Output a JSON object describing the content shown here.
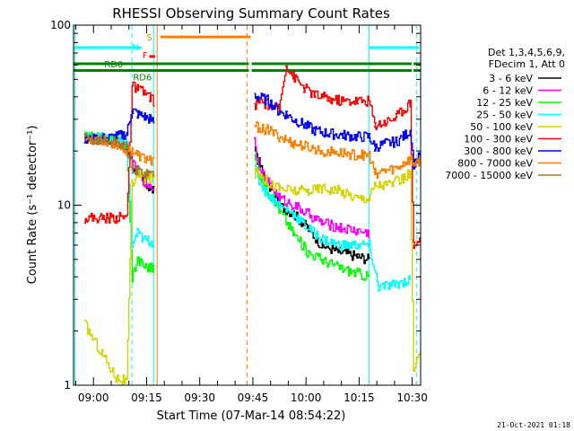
{
  "chart_data": {
    "type": "line",
    "title": "RHESSI Observing Summary Count Rates",
    "xlabel": "Start Time (07-Mar-14 08:54:22)",
    "ylabel": "Count Rate (s⁻¹ detector⁻¹)",
    "y_scale": "log",
    "ylim": [
      1,
      100
    ],
    "xlim_minutes": [
      0,
      98
    ],
    "x_ticks": [
      {
        "label": "09:00",
        "minute": 5.63
      },
      {
        "label": "09:15",
        "minute": 20.63
      },
      {
        "label": "09:30",
        "minute": 35.63
      },
      {
        "label": "09:45",
        "minute": 50.63
      },
      {
        "label": "10:00",
        "minute": 65.63
      },
      {
        "label": "10:15",
        "minute": 80.63
      },
      {
        "label": "10:30",
        "minute": 95.63
      }
    ],
    "y_ticks": [
      {
        "label": "1",
        "value": 1
      },
      {
        "label": "10",
        "value": 10
      },
      {
        "label": "100",
        "value": 100
      }
    ],
    "timestamp": "21-Oct-2021 01:18",
    "legend": {
      "placement": "right",
      "header": [
        "Det 1,3,4,5,6,9,",
        "FDecim 1, Att 0"
      ],
      "entries": [
        {
          "label": "3 - 6 keV",
          "color": "#000000"
        },
        {
          "label": "6 - 12 keV",
          "color": "#ff00ff"
        },
        {
          "label": "12 - 25 keV",
          "color": "#00ff00"
        },
        {
          "label": "25 - 50 keV",
          "color": "#00ffff"
        },
        {
          "label": "50 - 100 keV",
          "color": "#d4d400"
        },
        {
          "label": "100 - 300 keV",
          "color": "#ff0000"
        },
        {
          "label": "300 - 800 keV",
          "color": "#0000ff"
        },
        {
          "label": "800 - 7000 keV",
          "color": "#ff8000"
        },
        {
          "label": "7000 - 15000 keV",
          "color": "#a07830"
        }
      ]
    },
    "flags": [
      {
        "label": "N",
        "color": "#00ffff",
        "segments": [
          [
            0,
            19.2
          ],
          [
            83.5,
            97.5
          ]
        ],
        "level": 75
      },
      {
        "label": "S",
        "color": "#ff8000",
        "segments": [
          [
            24.5,
            50.0
          ]
        ],
        "level": 86
      },
      {
        "label": "F",
        "color": "#ff0000",
        "segments": [
          [
            21.4,
            23.0
          ]
        ],
        "level": 67
      },
      {
        "label": "RD0",
        "color": "#008000",
        "segments": [
          [
            0,
            49.5
          ],
          [
            50.3,
            95.5
          ],
          [
            96.0,
            98.0
          ]
        ],
        "level": 61
      },
      {
        "label": "RD6",
        "color": "#008000",
        "segments": [
          [
            0,
            49.5
          ],
          [
            50.3,
            95.5
          ],
          [
            96.0,
            98.0
          ]
        ],
        "level": 56
      }
    ],
    "vertical_markers": [
      {
        "minute": 0.4,
        "color": "#00ffff",
        "style": "solid"
      },
      {
        "minute": 16.5,
        "color": "#00ffff",
        "style": "dashed"
      },
      {
        "minute": 22.6,
        "color": "#00ffff",
        "style": "solid"
      },
      {
        "minute": 23.6,
        "color": "#ff8000",
        "style": "solid"
      },
      {
        "minute": 49.0,
        "color": "#ff8000",
        "style": "dashed"
      },
      {
        "minute": 83.4,
        "color": "#00ffff",
        "style": "solid"
      },
      {
        "minute": 96.8,
        "color": "#00ffff",
        "style": "dashed"
      }
    ],
    "series": [
      {
        "name": "3 - 6 keV",
        "color": "#000000",
        "points": [
          [
            3,
            23.5
          ],
          [
            8,
            23.2
          ],
          [
            12,
            22.5
          ],
          [
            15,
            21
          ],
          [
            16.5,
            17
          ],
          [
            18,
            15
          ],
          [
            20,
            13
          ],
          [
            21.5,
            12.5
          ],
          [
            22.6,
            12
          ],
          [
            51,
            22
          ],
          [
            52,
            18
          ],
          [
            54,
            14
          ],
          [
            56,
            12
          ],
          [
            58,
            10
          ],
          [
            62,
            9
          ],
          [
            66,
            7.5
          ],
          [
            70,
            6
          ],
          [
            75,
            5.5
          ],
          [
            80,
            5.2
          ],
          [
            83.4,
            5
          ]
        ]
      },
      {
        "name": "6 - 12 keV",
        "color": "#ff00ff",
        "points": [
          [
            3,
            23.5
          ],
          [
            8,
            23.2
          ],
          [
            12,
            22.5
          ],
          [
            15,
            21
          ],
          [
            16.5,
            17
          ],
          [
            18,
            15.5
          ],
          [
            20,
            13.5
          ],
          [
            21.5,
            13
          ],
          [
            22.6,
            12.5
          ],
          [
            51,
            23
          ],
          [
            52,
            18
          ],
          [
            54,
            14
          ],
          [
            56,
            12.5
          ],
          [
            58,
            11
          ],
          [
            62,
            10
          ],
          [
            66,
            9
          ],
          [
            70,
            8
          ],
          [
            75,
            7.5
          ],
          [
            80,
            7.2
          ],
          [
            83.4,
            7
          ]
        ]
      },
      {
        "name": "12 - 25 keV",
        "color": "#00ff00",
        "points": [
          [
            3,
            24
          ],
          [
            8,
            23.5
          ],
          [
            12,
            23
          ],
          [
            15,
            21.5
          ],
          [
            16.5,
            4
          ],
          [
            18,
            5
          ],
          [
            20,
            4.6
          ],
          [
            21.5,
            4.5
          ],
          [
            22.6,
            4.5
          ],
          [
            51,
            19
          ],
          [
            52,
            15
          ],
          [
            54,
            13
          ],
          [
            56,
            11
          ],
          [
            58,
            9.5
          ],
          [
            62,
            7
          ],
          [
            66,
            5.5
          ],
          [
            70,
            5
          ],
          [
            75,
            4.5
          ],
          [
            80,
            4.2
          ],
          [
            83.4,
            4
          ]
        ]
      },
      {
        "name": "25 - 50 keV",
        "color": "#00ffff",
        "points": [
          [
            3,
            24
          ],
          [
            8,
            23.7
          ],
          [
            12,
            23.2
          ],
          [
            15,
            22
          ],
          [
            16.5,
            6
          ],
          [
            18,
            7
          ],
          [
            20,
            6.4
          ],
          [
            21.5,
            6.3
          ],
          [
            22.6,
            6.2
          ],
          [
            51,
            17
          ],
          [
            52,
            14
          ],
          [
            54,
            12
          ],
          [
            56,
            11
          ],
          [
            58,
            10
          ],
          [
            62,
            9
          ],
          [
            66,
            7.5
          ],
          [
            70,
            6.5
          ],
          [
            75,
            6
          ],
          [
            80,
            6
          ],
          [
            83.4,
            6
          ],
          [
            86,
            3.5
          ],
          [
            90,
            3.6
          ],
          [
            94,
            3.8
          ],
          [
            95,
            3.8
          ]
        ]
      },
      {
        "name": "50 - 100 keV",
        "color": "#d4d400",
        "points": [
          [
            3,
            2.2
          ],
          [
            8,
            1.5
          ],
          [
            12,
            1.1
          ],
          [
            15,
            1.05
          ],
          [
            16.5,
            13
          ],
          [
            18,
            15
          ],
          [
            20,
            14
          ],
          [
            21.5,
            14
          ],
          [
            22.6,
            14
          ],
          [
            51,
            15
          ],
          [
            52,
            15.5
          ],
          [
            54,
            14
          ],
          [
            56,
            13
          ],
          [
            58,
            12.5
          ],
          [
            62,
            12
          ],
          [
            66,
            12
          ],
          [
            70,
            12.5
          ],
          [
            75,
            12
          ],
          [
            80,
            11
          ],
          [
            83.4,
            11
          ],
          [
            85,
            13
          ],
          [
            88,
            13
          ],
          [
            91,
            13.5
          ],
          [
            93,
            14
          ],
          [
            95,
            15
          ],
          [
            96,
            1.2
          ],
          [
            98,
            1.5
          ]
        ]
      },
      {
        "name": "100 - 300 keV",
        "color": "#ff0000",
        "points": [
          [
            3,
            8.5
          ],
          [
            8,
            8.5
          ],
          [
            12,
            8.5
          ],
          [
            15,
            8.6
          ],
          [
            16.5,
            46
          ],
          [
            18,
            44
          ],
          [
            20,
            42
          ],
          [
            21.5,
            40
          ],
          [
            22.6,
            38
          ],
          [
            51,
            35
          ],
          [
            52,
            38
          ],
          [
            55,
            36
          ],
          [
            58,
            34
          ],
          [
            60,
            60
          ],
          [
            62,
            52
          ],
          [
            65,
            45
          ],
          [
            68,
            41
          ],
          [
            72,
            39
          ],
          [
            76,
            38
          ],
          [
            80,
            38
          ],
          [
            83.4,
            38
          ],
          [
            85,
            28
          ],
          [
            88,
            29
          ],
          [
            91,
            31
          ],
          [
            93,
            34
          ],
          [
            95,
            37
          ],
          [
            96,
            6
          ],
          [
            98,
            6.5
          ]
        ]
      },
      {
        "name": "300 - 800 keV",
        "color": "#0000ff",
        "points": [
          [
            3,
            23
          ],
          [
            8,
            23.5
          ],
          [
            12,
            24
          ],
          [
            15,
            25
          ],
          [
            16.5,
            34
          ],
          [
            18,
            32
          ],
          [
            20,
            31
          ],
          [
            21.5,
            30
          ],
          [
            22.6,
            29
          ],
          [
            51,
            41
          ],
          [
            52,
            40
          ],
          [
            55,
            38
          ],
          [
            58,
            33
          ],
          [
            60,
            32
          ],
          [
            62,
            30
          ],
          [
            65,
            28
          ],
          [
            68,
            26
          ],
          [
            72,
            25
          ],
          [
            76,
            24.5
          ],
          [
            80,
            24
          ],
          [
            83.4,
            24
          ],
          [
            85,
            21
          ],
          [
            88,
            22
          ],
          [
            91,
            22.5
          ],
          [
            93,
            24
          ],
          [
            95,
            26
          ],
          [
            96,
            17
          ],
          [
            98,
            19
          ]
        ]
      },
      {
        "name": "800 - 7000 keV",
        "color": "#ff8000",
        "points": [
          [
            3,
            23.2
          ],
          [
            8,
            22.8
          ],
          [
            12,
            22
          ],
          [
            15,
            20
          ],
          [
            16.5,
            20
          ],
          [
            18,
            19
          ],
          [
            20,
            18
          ],
          [
            21.5,
            18
          ],
          [
            22.6,
            17.5
          ],
          [
            51,
            28
          ],
          [
            52,
            27
          ],
          [
            55,
            26
          ],
          [
            58,
            24
          ],
          [
            62,
            22
          ],
          [
            66,
            21
          ],
          [
            70,
            20
          ],
          [
            75,
            19.5
          ],
          [
            80,
            19
          ],
          [
            83.4,
            19
          ],
          [
            85,
            15
          ],
          [
            88,
            15.5
          ],
          [
            91,
            16
          ],
          [
            93,
            17
          ],
          [
            95,
            18
          ],
          [
            96,
            17
          ],
          [
            98,
            18
          ]
        ]
      },
      {
        "name": "7000 - 15000 keV",
        "color": "#a07830",
        "points": [
          [
            3,
            23.5
          ],
          [
            8,
            23
          ],
          [
            12,
            22.5
          ],
          [
            15,
            21
          ],
          [
            16.5,
            16
          ],
          [
            18,
            15.5
          ],
          [
            20,
            15
          ],
          [
            21.5,
            15
          ],
          [
            22.6,
            15
          ]
        ]
      }
    ]
  }
}
